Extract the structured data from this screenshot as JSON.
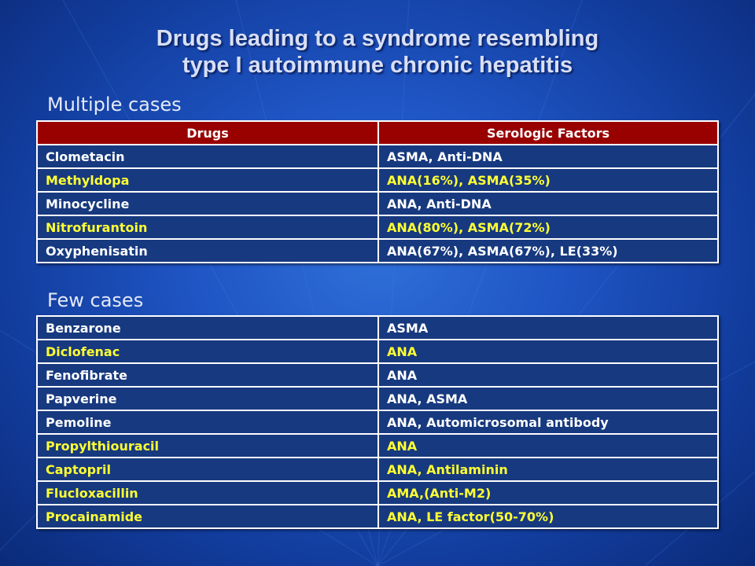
{
  "slide": {
    "title_line1": "Drugs leading to a syndrome resembling",
    "title_line2": "type I autoimmune chronic hepatitis"
  },
  "colors": {
    "header_bg": "#990000",
    "cell_bg": "#17397f",
    "highlight_text": "#ffff33"
  },
  "multiple": {
    "label": "Multiple cases",
    "headers": [
      "Drugs",
      "Serologic Factors"
    ],
    "rows": [
      {
        "drug": "Clometacin",
        "factors": "ASMA, Anti-DNA"
      },
      {
        "drug": "Methyldopa",
        "factors": "ANA(16%), ASMA(35%)"
      },
      {
        "drug": "Minocycline",
        "factors": "ANA, Anti-DNA"
      },
      {
        "drug": "Nitrofurantoin",
        "factors": "ANA(80%), ASMA(72%)"
      },
      {
        "drug": "Oxyphenisatin",
        "factors": "ANA(67%), ASMA(67%), LE(33%)"
      }
    ]
  },
  "few": {
    "label": "Few cases",
    "rows": [
      {
        "drug": "Benzarone",
        "factors": "ASMA"
      },
      {
        "drug": "Diclofenac",
        "factors": "ANA"
      },
      {
        "drug": "Fenofibrate",
        "factors": "ANA"
      },
      {
        "drug": "Papverine",
        "factors": "ANA, ASMA"
      },
      {
        "drug": "Pemoline",
        "factors": "ANA, Automicrosomal antibody"
      },
      {
        "drug": "Propylthiouracil",
        "factors": "ANA"
      },
      {
        "drug": "Captopril",
        "factors": "ANA, Antilaminin"
      },
      {
        "drug": "Flucloxacillin",
        "factors": "AMA,(Anti-M2)"
      },
      {
        "drug": "Procainamide",
        "factors": "ANA, LE factor(50-70%)"
      }
    ]
  }
}
